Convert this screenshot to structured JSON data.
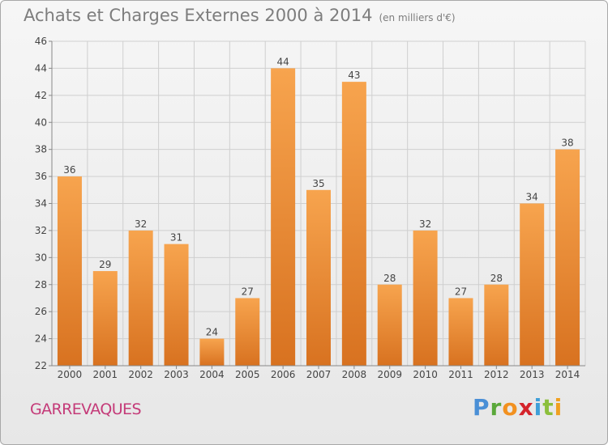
{
  "header": {
    "title": "Achats et Charges Externes 2000 à 2014",
    "subtitle": "(en milliers d'€)"
  },
  "footer": {
    "commune": "GARREVAQUES",
    "logo_letters": [
      "P",
      "r",
      "o",
      "x",
      "i",
      "t",
      "i"
    ]
  },
  "colors": {
    "bar_light": "#f7a44e",
    "bar_dark": "#d87220",
    "grid": "#cfcfcf",
    "commune": "#c43a78",
    "logo": [
      "#4a8fd6",
      "#5aa83a",
      "#f29120",
      "#d4232b",
      "#3f9fd8",
      "#8cbf3c",
      "#f0a020"
    ]
  },
  "chart_data": {
    "type": "bar",
    "categories": [
      "2000",
      "2001",
      "2002",
      "2003",
      "2004",
      "2005",
      "2006",
      "2007",
      "2008",
      "2009",
      "2010",
      "2011",
      "2012",
      "2013",
      "2014"
    ],
    "values": [
      36,
      29,
      32,
      31,
      24,
      27,
      44,
      35,
      43,
      28,
      32,
      27,
      28,
      34,
      38
    ],
    "ylim": [
      22,
      46
    ],
    "yticks": [
      22,
      24,
      26,
      28,
      30,
      32,
      34,
      36,
      38,
      40,
      42,
      44,
      46
    ],
    "grid": true,
    "data_labels": true
  }
}
